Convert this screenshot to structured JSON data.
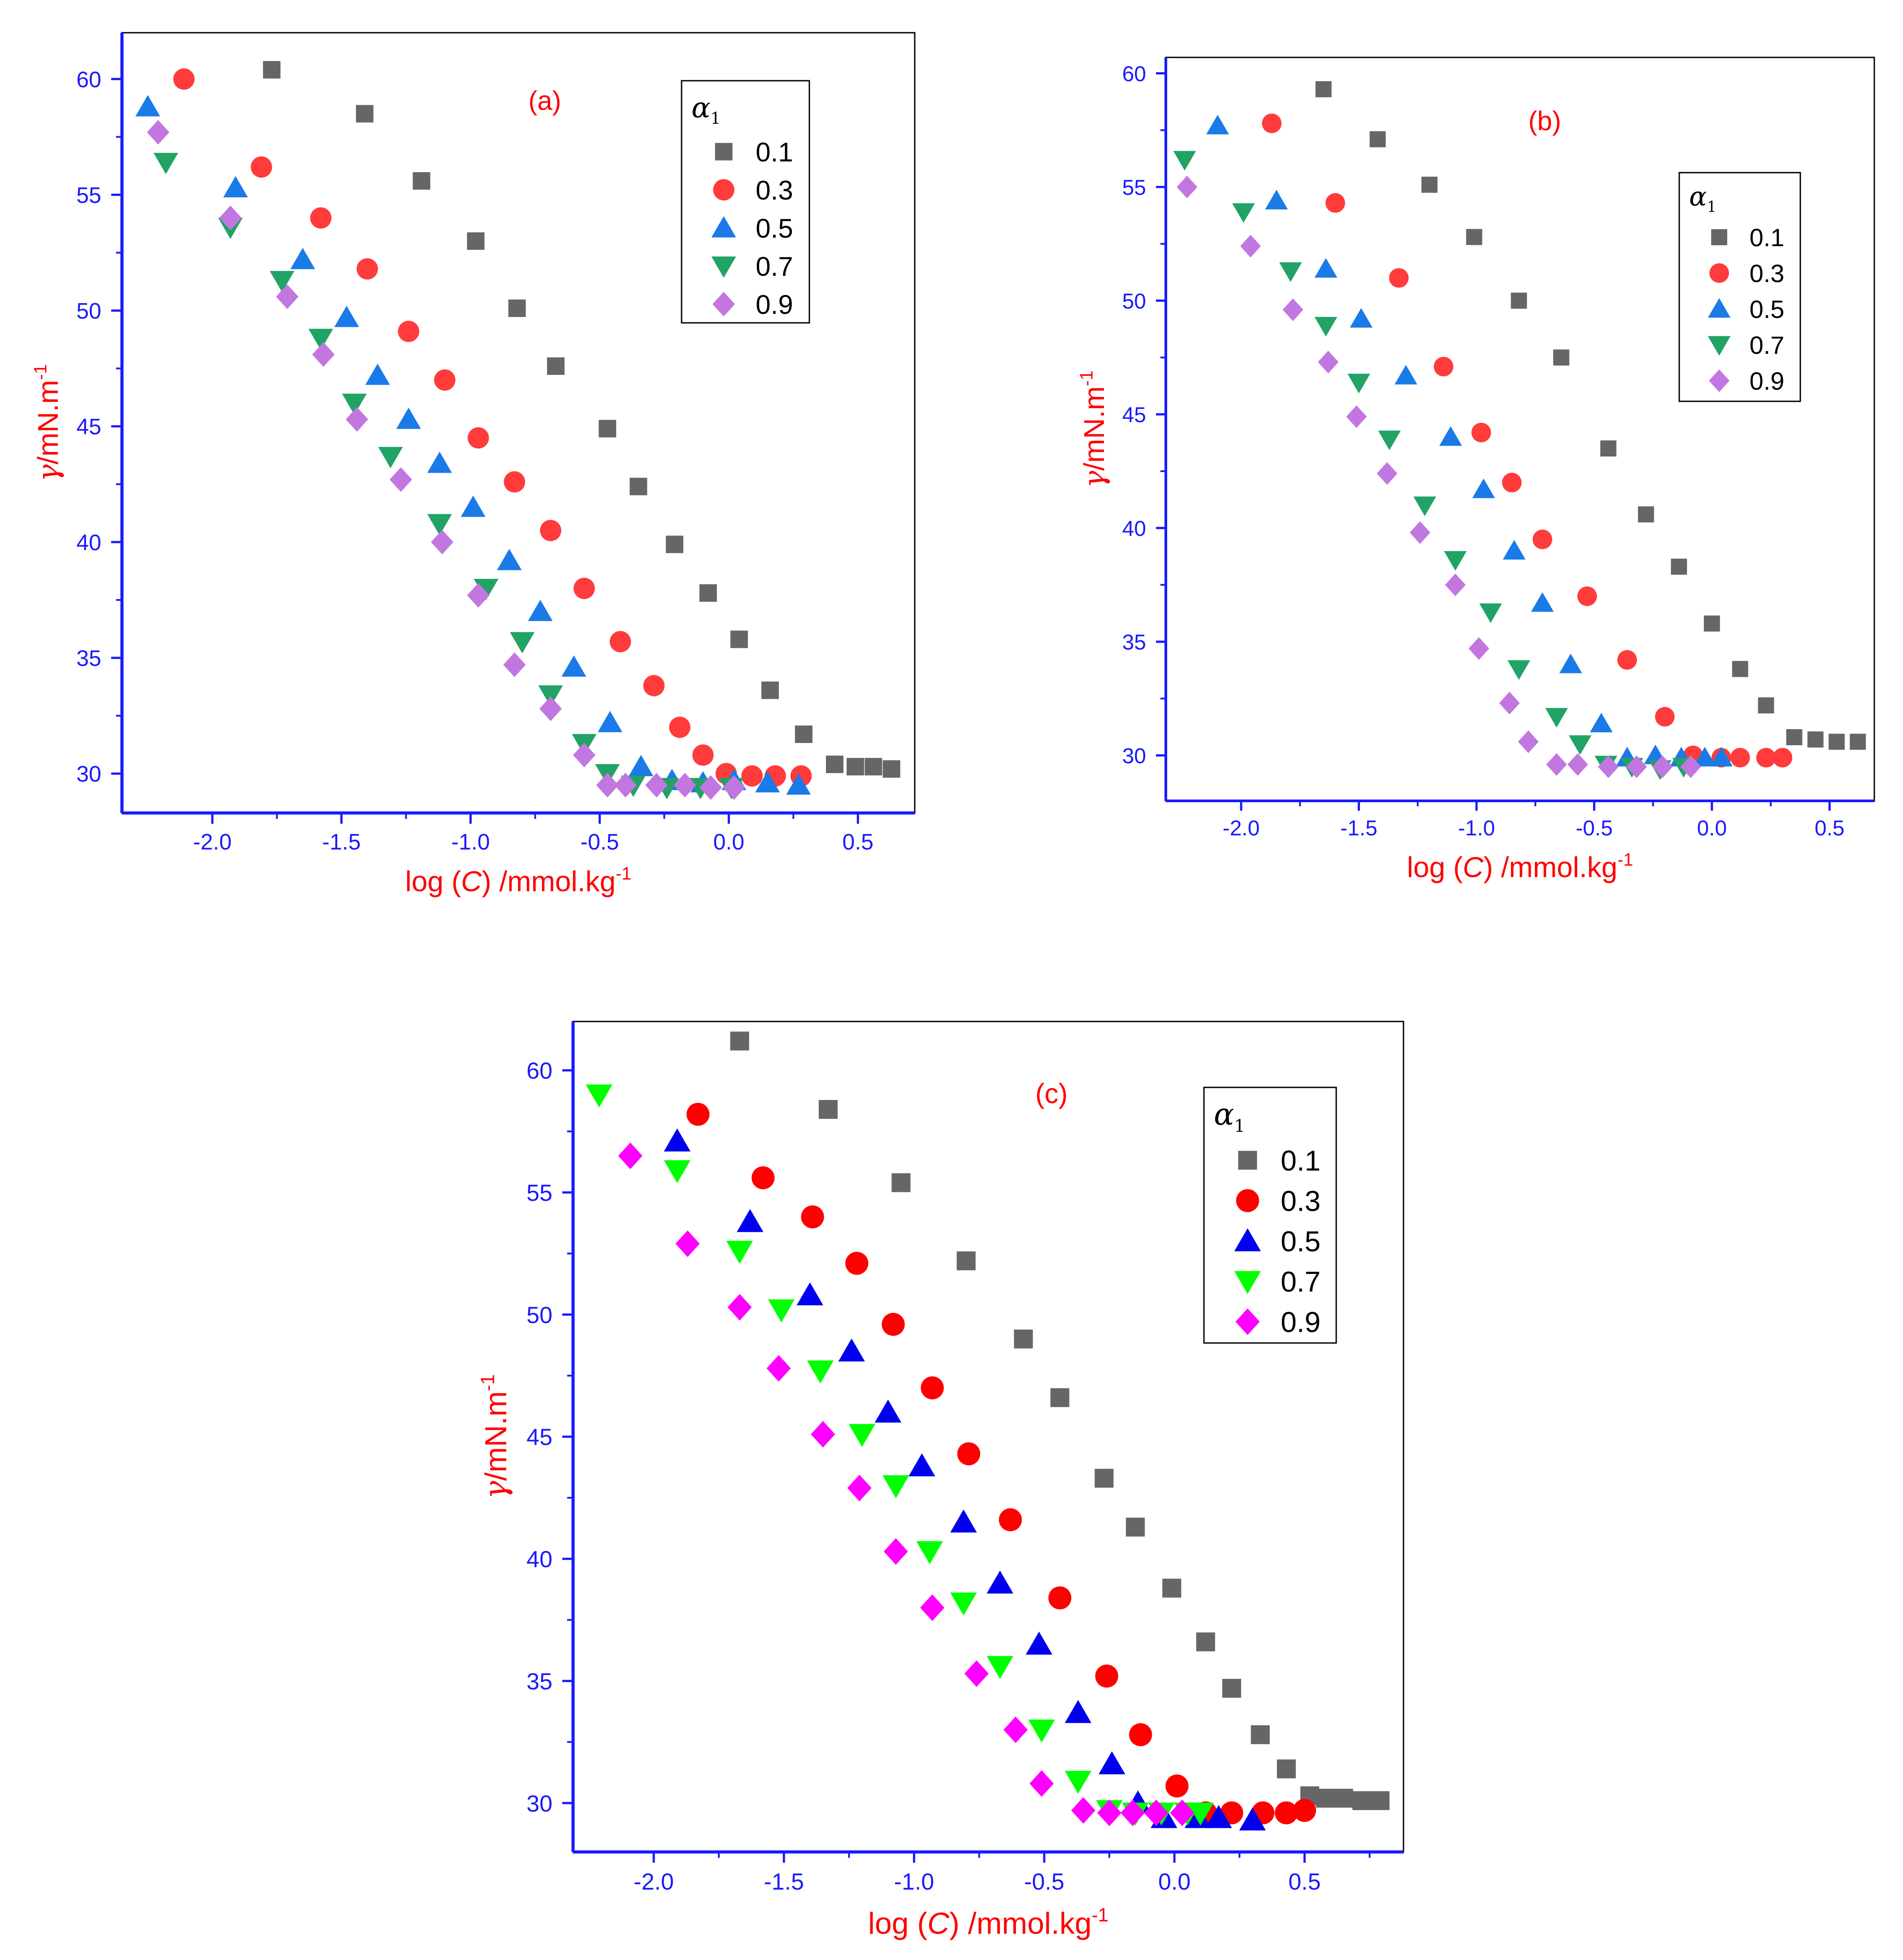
{
  "figure": {
    "colors": {
      "axis": "#1a1aff",
      "ticklabel": "#1a1aff",
      "axislabel": "#ff0000",
      "panel_label": "#ff0000",
      "frame": "#000000"
    }
  },
  "chart_data": [
    {
      "type": "scatter",
      "panel_label": "(a)",
      "xlabel_prefix": "log (",
      "xlabel_var": "C",
      "xlabel_suffix": ") /mmol.kg",
      "xlabel_sup": "-1",
      "ylabel_var": "γ",
      "ylabel_text": "/mN.m",
      "ylabel_sup": "-1",
      "legend_title": "α",
      "legend_title_sub": "1",
      "legend_position": "top-right",
      "xlim": [
        -2.35,
        0.72
      ],
      "ylim": [
        28.3,
        62.0
      ],
      "xticks": [
        -2.0,
        -1.5,
        -1.0,
        -0.5,
        0.0,
        0.5
      ],
      "xtick_labels": [
        "-2.0",
        "-1.5",
        "-1.0",
        "-0.5",
        "0.0",
        "0.5"
      ],
      "yticks": [
        30,
        35,
        40,
        45,
        50,
        55,
        60
      ],
      "ytick_labels": [
        "30",
        "35",
        "40",
        "45",
        "50",
        "55",
        "60"
      ],
      "series": [
        {
          "name": "0.1",
          "marker": "square",
          "color": "#666666",
          "x": [
            -1.77,
            -1.41,
            -1.19,
            -0.98,
            -0.82,
            -0.67,
            -0.47,
            -0.35,
            -0.21,
            -0.08,
            0.04,
            0.16,
            0.29,
            0.41,
            0.49,
            0.56,
            0.63
          ],
          "y": [
            60.4,
            58.5,
            55.6,
            53.0,
            50.1,
            47.6,
            44.9,
            42.4,
            39.9,
            37.8,
            35.8,
            33.6,
            31.7,
            30.4,
            30.3,
            30.3,
            30.2
          ]
        },
        {
          "name": "0.3",
          "marker": "circle",
          "color": "#ff3b3b",
          "x": [
            -2.11,
            -1.81,
            -1.58,
            -1.4,
            -1.24,
            -1.1,
            -0.97,
            -0.83,
            -0.69,
            -0.56,
            -0.42,
            -0.29,
            -0.19,
            -0.1,
            -0.01,
            0.09,
            0.18,
            0.28
          ],
          "y": [
            60.0,
            56.2,
            54.0,
            51.8,
            49.1,
            47.0,
            44.5,
            42.6,
            40.5,
            38.0,
            35.7,
            33.8,
            32.0,
            30.8,
            30.0,
            29.9,
            29.9,
            29.9
          ]
        },
        {
          "name": "0.5",
          "marker": "triangle-up",
          "color": "#1a7ae8",
          "x": [
            -2.25,
            -1.91,
            -1.65,
            -1.48,
            -1.36,
            -1.24,
            -1.12,
            -0.99,
            -0.85,
            -0.73,
            -0.6,
            -0.46,
            -0.34,
            -0.22,
            -0.1,
            0.02,
            0.15,
            0.27
          ],
          "y": [
            58.8,
            55.3,
            52.2,
            49.7,
            47.2,
            45.3,
            43.4,
            41.5,
            39.2,
            37.0,
            34.6,
            32.2,
            30.3,
            29.7,
            29.6,
            29.7,
            29.6,
            29.5
          ]
        },
        {
          "name": "0.7",
          "marker": "triangle-down",
          "color": "#21a366",
          "x": [
            -2.18,
            -1.93,
            -1.73,
            -1.58,
            -1.45,
            -1.31,
            -1.12,
            -0.94,
            -0.8,
            -0.69,
            -0.56,
            -0.47,
            -0.37,
            -0.24,
            -0.11,
            0.01
          ],
          "y": [
            56.4,
            53.6,
            51.3,
            48.8,
            46.0,
            43.7,
            40.8,
            38.0,
            35.7,
            33.4,
            31.3,
            30.0,
            29.5,
            29.4,
            29.4,
            29.4
          ]
        },
        {
          "name": "0.9",
          "marker": "diamond",
          "color": "#c277e0",
          "x": [
            -2.21,
            -1.93,
            -1.71,
            -1.57,
            -1.44,
            -1.27,
            -1.11,
            -0.97,
            -0.83,
            -0.69,
            -0.56,
            -0.47,
            -0.4,
            -0.28,
            -0.17,
            -0.07,
            0.02
          ],
          "y": [
            57.7,
            54.0,
            50.6,
            48.1,
            45.3,
            42.7,
            40.0,
            37.7,
            34.7,
            32.8,
            30.8,
            29.5,
            29.5,
            29.5,
            29.5,
            29.4,
            29.4
          ]
        }
      ]
    },
    {
      "type": "scatter",
      "panel_label": "(b)",
      "xlabel_prefix": "log (",
      "xlabel_var": "C",
      "xlabel_suffix": ") /mmol.kg",
      "xlabel_sup": "-1",
      "ylabel_var": "γ",
      "ylabel_text": "/mN.m",
      "ylabel_sup": "-1",
      "legend_title": "α",
      "legend_title_sub": "1",
      "legend_position": "top-right",
      "xlim": [
        -2.32,
        0.69
      ],
      "ylim": [
        28.0,
        60.7
      ],
      "xticks": [
        -2.0,
        -1.5,
        -1.0,
        -0.5,
        0.0,
        0.5
      ],
      "xtick_labels": [
        "-2.0",
        "-1.5",
        "-1.0",
        "-0.5",
        "0.0",
        "0.5"
      ],
      "yticks": [
        30,
        35,
        40,
        45,
        50,
        55,
        60
      ],
      "ytick_labels": [
        "30",
        "35",
        "40",
        "45",
        "50",
        "55",
        "60"
      ],
      "series": [
        {
          "name": "0.1",
          "marker": "square",
          "color": "#666666",
          "x": [
            -1.65,
            -1.42,
            -1.2,
            -1.01,
            -0.82,
            -0.64,
            -0.44,
            -0.28,
            -0.14,
            0.0,
            0.12,
            0.23,
            0.35,
            0.44,
            0.53,
            0.62
          ],
          "y": [
            59.3,
            57.1,
            55.1,
            52.8,
            50.0,
            47.5,
            43.5,
            40.6,
            38.3,
            35.8,
            33.8,
            32.2,
            30.8,
            30.7,
            30.6,
            30.6
          ]
        },
        {
          "name": "0.3",
          "marker": "circle",
          "color": "#ff3b3b",
          "x": [
            -1.87,
            -1.6,
            -1.33,
            -1.14,
            -0.98,
            -0.85,
            -0.72,
            -0.53,
            -0.36,
            -0.2,
            -0.08,
            0.04,
            0.12,
            0.23,
            0.3
          ],
          "y": [
            57.8,
            54.3,
            51.0,
            47.1,
            44.2,
            42.0,
            39.5,
            37.0,
            34.2,
            31.7,
            30.0,
            29.9,
            29.9,
            29.9,
            29.9
          ]
        },
        {
          "name": "0.5",
          "marker": "triangle-up",
          "color": "#1a7ae8",
          "x": [
            -2.1,
            -1.85,
            -1.64,
            -1.49,
            -1.3,
            -1.11,
            -0.97,
            -0.84,
            -0.72,
            -0.6,
            -0.47,
            -0.36,
            -0.24,
            -0.13,
            -0.03,
            0.04
          ],
          "y": [
            57.7,
            54.4,
            51.4,
            49.2,
            46.7,
            44.0,
            41.7,
            39.0,
            36.7,
            34.0,
            31.4,
            29.9,
            30.0,
            29.9,
            29.9,
            29.9
          ]
        },
        {
          "name": "0.7",
          "marker": "triangle-down",
          "color": "#21a366",
          "x": [
            -2.24,
            -1.99,
            -1.79,
            -1.64,
            -1.5,
            -1.37,
            -1.22,
            -1.09,
            -0.94,
            -0.82,
            -0.66,
            -0.56,
            -0.45,
            -0.34,
            -0.22,
            -0.12
          ],
          "y": [
            56.2,
            53.9,
            51.3,
            48.9,
            46.4,
            43.9,
            41.0,
            38.6,
            36.3,
            33.8,
            31.7,
            30.5,
            29.6,
            29.5,
            29.4,
            29.5
          ]
        },
        {
          "name": "0.9",
          "marker": "diamond",
          "color": "#c277e0",
          "x": [
            -2.23,
            -1.96,
            -1.78,
            -1.63,
            -1.51,
            -1.38,
            -1.24,
            -1.09,
            -0.99,
            -0.86,
            -0.78,
            -0.66,
            -0.57,
            -0.44,
            -0.32,
            -0.21,
            -0.09
          ],
          "y": [
            55.0,
            52.4,
            49.6,
            47.3,
            44.9,
            42.4,
            39.8,
            37.5,
            34.7,
            32.3,
            30.6,
            29.6,
            29.6,
            29.5,
            29.5,
            29.5,
            29.5
          ]
        }
      ]
    },
    {
      "type": "scatter",
      "panel_label": "(c)",
      "xlabel_prefix": "log (",
      "xlabel_var": "C",
      "xlabel_suffix": ") /mmol.kg",
      "xlabel_sup": "-1",
      "ylabel_var": "γ",
      "ylabel_text": "/mN.m",
      "ylabel_sup": "-1",
      "legend_title": "α",
      "legend_title_sub": "1",
      "legend_position": "top-right",
      "xlim": [
        -2.31,
        0.88
      ],
      "ylim": [
        28.0,
        62.0
      ],
      "xticks": [
        -2.0,
        -1.5,
        -1.0,
        -0.5,
        0.0,
        0.5
      ],
      "xtick_labels": [
        "-2.0",
        "-1.5",
        "-1.0",
        "-0.5",
        "0.0",
        "0.5"
      ],
      "yticks": [
        30,
        35,
        40,
        45,
        50,
        55,
        60
      ],
      "ytick_labels": [
        "30",
        "35",
        "40",
        "45",
        "50",
        "55",
        "60"
      ],
      "series": [
        {
          "name": "0.1",
          "marker": "square",
          "color": "#666666",
          "x": [
            -1.67,
            -1.33,
            -1.05,
            -0.8,
            -0.58,
            -0.44,
            -0.27,
            -0.15,
            -0.01,
            0.12,
            0.22,
            0.33,
            0.43,
            0.52,
            0.58,
            0.65,
            0.72,
            0.79
          ],
          "y": [
            61.2,
            58.4,
            55.4,
            52.2,
            49.0,
            46.6,
            43.3,
            41.3,
            38.8,
            36.6,
            34.7,
            32.8,
            31.4,
            30.3,
            30.2,
            30.2,
            30.1,
            30.1
          ]
        },
        {
          "name": "0.3",
          "marker": "circle",
          "color": "#ff0000",
          "x": [
            -1.83,
            -1.58,
            -1.39,
            -1.22,
            -1.08,
            -0.93,
            -0.79,
            -0.63,
            -0.44,
            -0.26,
            -0.13,
            0.01,
            0.12,
            0.22,
            0.34,
            0.43,
            0.5
          ],
          "y": [
            58.2,
            55.6,
            54.0,
            52.1,
            49.6,
            47.0,
            44.3,
            41.6,
            38.4,
            35.2,
            32.8,
            30.7,
            29.6,
            29.6,
            29.6,
            29.6,
            29.7
          ]
        },
        {
          "name": "0.5",
          "marker": "triangle-up",
          "color": "#0000ee",
          "x": [
            -1.91,
            -1.63,
            -1.4,
            -1.24,
            -1.1,
            -0.97,
            -0.81,
            -0.67,
            -0.52,
            -0.37,
            -0.24,
            -0.14,
            -0.04,
            0.09,
            0.17,
            0.3
          ],
          "y": [
            57.1,
            53.8,
            50.8,
            48.5,
            46.0,
            43.8,
            41.5,
            39.0,
            36.5,
            33.7,
            31.6,
            30.0,
            29.4,
            29.4,
            29.4,
            29.3
          ]
        },
        {
          "name": "0.7",
          "marker": "triangle-down",
          "color": "#00ff00",
          "x": [
            -2.21,
            -1.91,
            -1.67,
            -1.51,
            -1.36,
            -1.2,
            -1.07,
            -0.94,
            -0.81,
            -0.67,
            -0.51,
            -0.37,
            -0.25,
            -0.15,
            -0.05,
            0.05,
            0.1
          ],
          "y": [
            59.0,
            55.9,
            52.6,
            50.2,
            47.7,
            45.1,
            43.0,
            40.3,
            38.2,
            35.6,
            33.0,
            30.9,
            29.7,
            29.6,
            29.6,
            29.6,
            29.6
          ]
        },
        {
          "name": "0.9",
          "marker": "diamond",
          "color": "#ff00ff",
          "x": [
            -2.09,
            -1.87,
            -1.67,
            -1.52,
            -1.35,
            -1.21,
            -1.07,
            -0.93,
            -0.76,
            -0.61,
            -0.51,
            -0.35,
            -0.25,
            -0.16,
            -0.07,
            0.03
          ],
          "y": [
            56.5,
            52.9,
            50.3,
            47.8,
            45.1,
            42.9,
            40.3,
            38.0,
            35.3,
            33.0,
            30.8,
            29.7,
            29.6,
            29.6,
            29.6,
            29.6
          ]
        }
      ]
    }
  ]
}
